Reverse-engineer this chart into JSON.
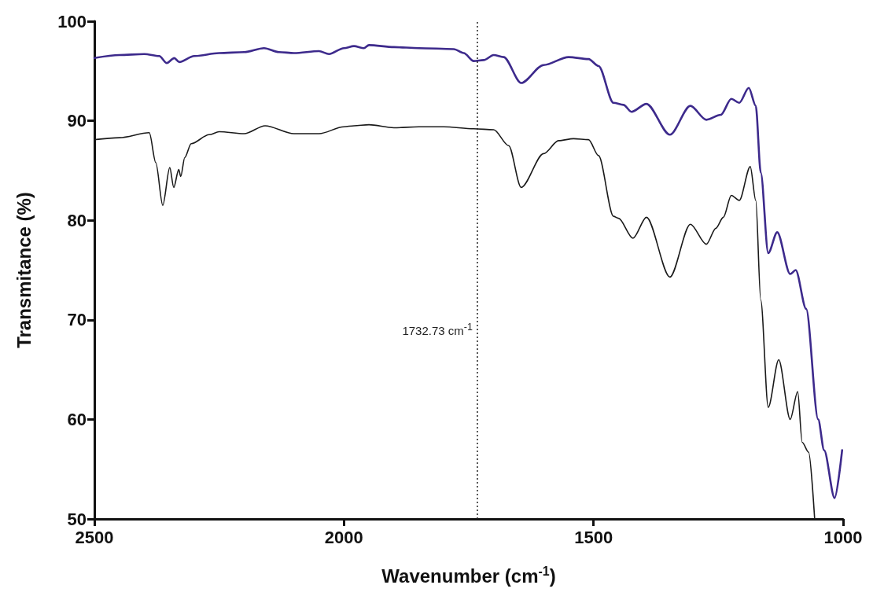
{
  "chart_data": {
    "type": "line",
    "xlabel": "Wavenumber (cm$^{-1}$)",
    "ylabel": "Transmitance (%)",
    "xlim": [
      2500,
      1000
    ],
    "xticks": [
      2500,
      2000,
      1500,
      1000
    ],
    "ylim": [
      50,
      100
    ],
    "yticks": [
      50,
      60,
      70,
      80,
      90,
      100
    ],
    "grid": false,
    "marker": "none",
    "line_style": "solid",
    "ref_lines": [
      {
        "axis": "x",
        "value": 1732.73,
        "label": "1732.73 cm$^{-1}$",
        "line_style": "dotted",
        "color": "#222222"
      }
    ],
    "series": [
      {
        "color": "#3d2a8c",
        "x": [
          2500,
          2450,
          2400,
          2370,
          2355,
          2340,
          2330,
          2300,
          2250,
          2200,
          2160,
          2130,
          2100,
          2050,
          2030,
          2000,
          1980,
          1960,
          1950,
          1900,
          1850,
          1780,
          1760,
          1740,
          1720,
          1700,
          1680,
          1645,
          1600,
          1550,
          1510,
          1490,
          1460,
          1440,
          1424,
          1394,
          1347,
          1306,
          1274,
          1245,
          1224,
          1208,
          1189,
          1175,
          1165,
          1150,
          1132,
          1106,
          1095,
          1074,
          1050,
          1038,
          1017,
          1002
        ],
        "values": [
          96.3,
          96.6,
          96.7,
          96.5,
          95.8,
          96.3,
          95.9,
          96.5,
          96.8,
          96.9,
          97.3,
          96.9,
          96.8,
          97.0,
          96.7,
          97.3,
          97.5,
          97.3,
          97.6,
          97.4,
          97.3,
          97.2,
          96.8,
          96.0,
          96.1,
          96.6,
          96.4,
          93.8,
          95.6,
          96.4,
          96.2,
          95.5,
          91.8,
          91.6,
          90.9,
          91.7,
          88.6,
          91.5,
          90.1,
          90.6,
          92.2,
          91.8,
          93.3,
          91.5,
          84.8,
          76.7,
          78.8,
          74.6,
          75.0,
          71.1,
          60.0,
          56.9,
          52.1,
          56.9
        ]
      },
      {
        "color": "#1a1a1a",
        "x": [
          2500,
          2450,
          2390,
          2377,
          2363,
          2349,
          2341,
          2331,
          2327,
          2319,
          2306,
          2270,
          2250,
          2200,
          2158,
          2100,
          2050,
          2000,
          1980,
          1950,
          1900,
          1850,
          1800,
          1740,
          1700,
          1670,
          1645,
          1600,
          1570,
          1540,
          1510,
          1490,
          1460,
          1450,
          1421,
          1394,
          1347,
          1306,
          1274,
          1255,
          1240,
          1224,
          1208,
          1186,
          1175,
          1165,
          1150,
          1129,
          1106,
          1091,
          1082,
          1069,
          1057
        ],
        "values": [
          88.1,
          88.3,
          88.8,
          85.8,
          81.5,
          85.3,
          83.3,
          85.1,
          84.4,
          86.3,
          87.7,
          88.6,
          88.9,
          88.7,
          89.5,
          88.7,
          88.7,
          89.4,
          89.5,
          89.6,
          89.3,
          89.4,
          89.4,
          89.2,
          89.1,
          87.5,
          83.3,
          86.7,
          88.0,
          88.2,
          88.1,
          86.5,
          80.4,
          80.2,
          78.2,
          80.3,
          74.3,
          79.6,
          77.6,
          79.2,
          80.3,
          82.5,
          82.0,
          85.4,
          82.0,
          72.0,
          61.2,
          66.0,
          60.0,
          62.8,
          57.7,
          56.7,
          50.0
        ]
      }
    ]
  }
}
